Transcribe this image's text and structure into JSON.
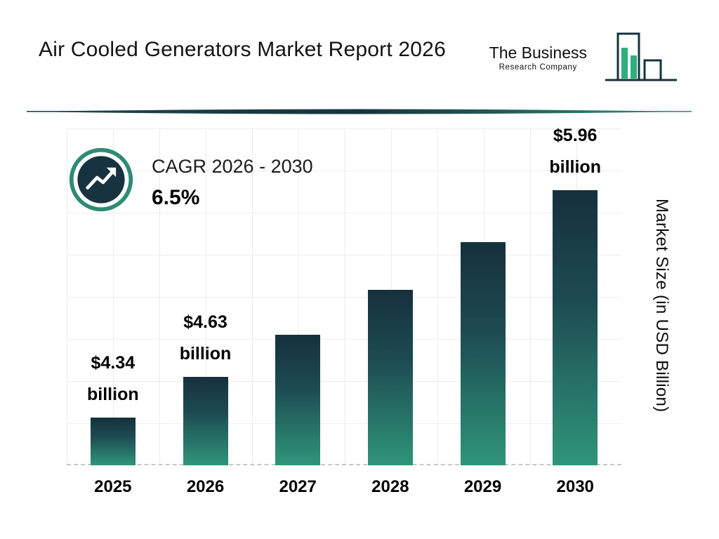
{
  "header": {
    "title": "Air Cooled Generators Market Report 2026",
    "logo": {
      "line1": "The Business",
      "line2": "Research Company"
    }
  },
  "cagr": {
    "label": "CAGR 2026 - 2030",
    "value": "6.5%"
  },
  "chart_data": {
    "type": "bar",
    "title": "Air Cooled Generators Market Report 2026",
    "categories": [
      "2025",
      "2026",
      "2027",
      "2028",
      "2029",
      "2030"
    ],
    "values": [
      4.34,
      4.63,
      4.93,
      5.25,
      5.59,
      5.96
    ],
    "value_labels": [
      {
        "index": 0,
        "line1": "$4.34",
        "line2": "billion"
      },
      {
        "index": 1,
        "line1": "$4.63",
        "line2": "billion"
      },
      {
        "index": 5,
        "line1": "$5.96",
        "line2": "billion"
      }
    ],
    "xlabel": "",
    "ylabel": "Market Size (in USD Billion)",
    "ylim": [
      4.0,
      6.4
    ],
    "grid": true,
    "legend": "none",
    "colors": {
      "bar_top": "#16303d",
      "bar_bottom": "#2f9579",
      "accent_teal": "#2e8b74",
      "badge_navy": "#16333f"
    }
  }
}
